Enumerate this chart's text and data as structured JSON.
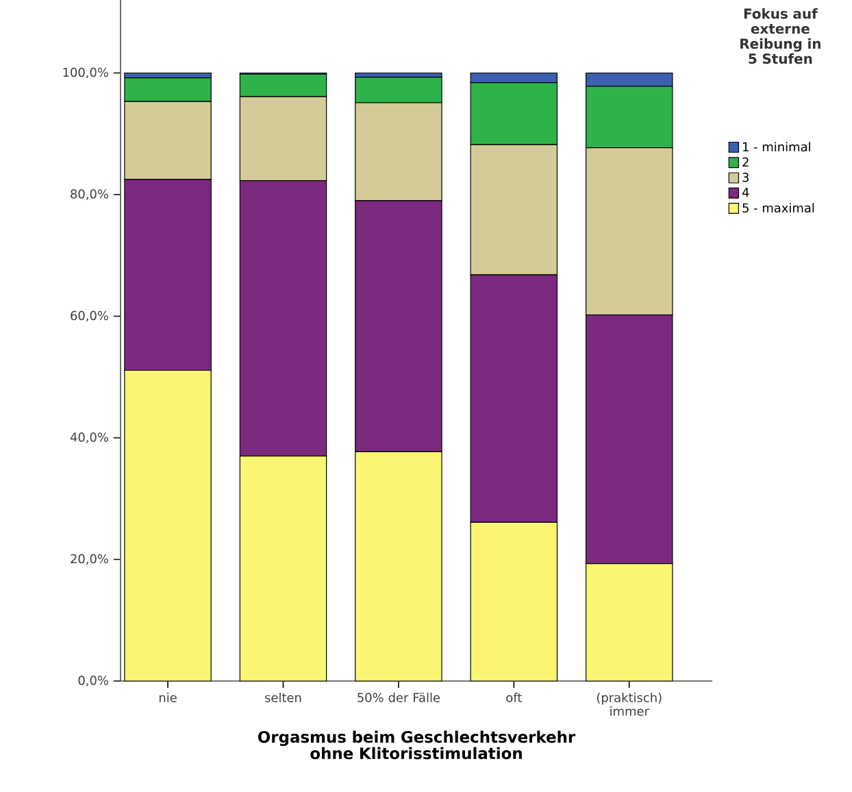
{
  "chart_data": {
    "type": "bar",
    "stacked": true,
    "xlabel": "Orgasmus beim Geschlechtsverkehr ohne Klitorisstimulation",
    "legend_title": "Fokus auf externe Reibung in 5 Stufen",
    "categories": [
      "nie",
      "selten",
      "50% der Fälle",
      "oft",
      "(praktisch) immer"
    ],
    "series": [
      {
        "name": "5 - maximal",
        "color": "#faf572",
        "values": [
          51.1,
          37.0,
          37.7,
          26.1,
          19.3
        ]
      },
      {
        "name": "4",
        "color": "#7b2a7f",
        "values": [
          31.4,
          45.3,
          41.3,
          40.7,
          40.9
        ]
      },
      {
        "name": "3",
        "color": "#d4cc98",
        "values": [
          12.8,
          13.8,
          16.1,
          21.4,
          27.5
        ]
      },
      {
        "name": "2",
        "color": "#2db34a",
        "values": [
          3.9,
          3.7,
          4.2,
          10.2,
          10.1
        ]
      },
      {
        "name": "1 - minimal",
        "color": "#3d5fb0",
        "values": [
          0.8,
          0.2,
          0.7,
          1.6,
          2.2
        ]
      }
    ],
    "ylim": [
      0,
      112
    ],
    "yticks": [
      {
        "value": 0,
        "label": "0,0%"
      },
      {
        "value": 20,
        "label": "20,0%"
      },
      {
        "value": 40,
        "label": "40,0%"
      },
      {
        "value": 60,
        "label": "60,0%"
      },
      {
        "value": 80,
        "label": "80,0%"
      },
      {
        "value": 100,
        "label": "100,0%"
      }
    ],
    "legend": "right"
  }
}
